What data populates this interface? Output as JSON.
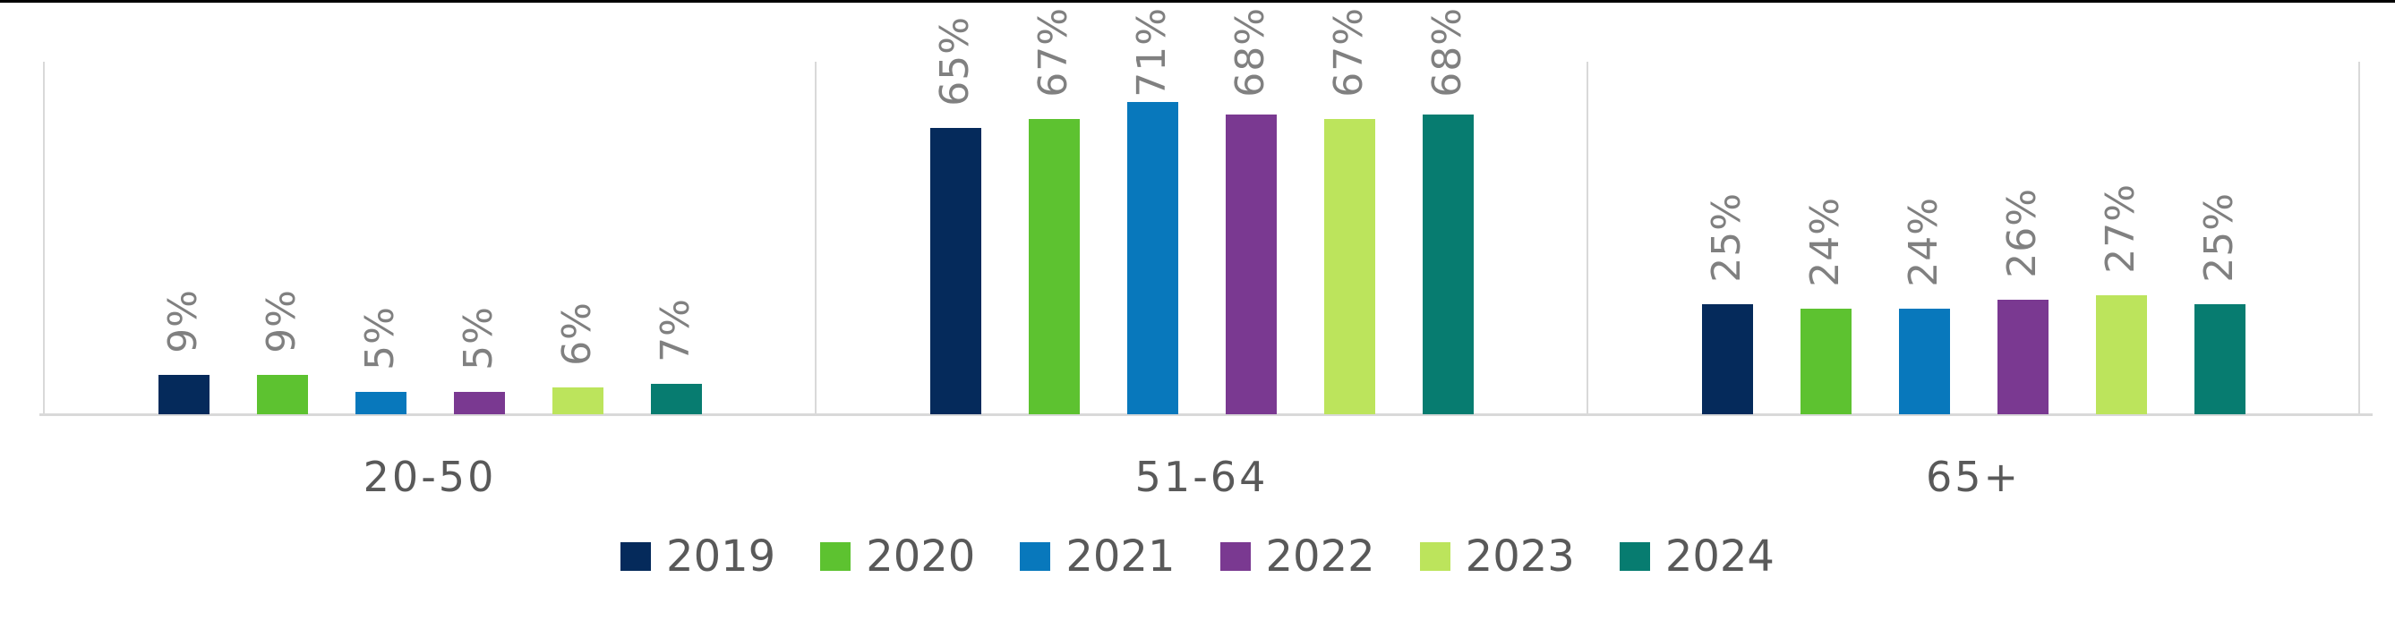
{
  "chart_data": {
    "type": "bar",
    "title": "",
    "categories": [
      "20-50",
      "51-64",
      "65+"
    ],
    "series": [
      {
        "name": "2019",
        "color": "#052A5B",
        "values": [
          9,
          65,
          25
        ]
      },
      {
        "name": "2020",
        "color": "#5DC230",
        "values": [
          9,
          67,
          24
        ]
      },
      {
        "name": "2021",
        "color": "#0878BC",
        "values": [
          5,
          71,
          24
        ]
      },
      {
        "name": "2022",
        "color": "#7A3991",
        "values": [
          5,
          68,
          26
        ]
      },
      {
        "name": "2023",
        "color": "#BCE45C",
        "values": [
          6,
          67,
          27
        ]
      },
      {
        "name": "2024",
        "color": "#077C70",
        "values": [
          7,
          68,
          25
        ]
      }
    ],
    "data_labels": [
      "9%",
      "9%",
      "5%",
      "5%",
      "6%",
      "7%",
      "65%",
      "67%",
      "71%",
      "68%",
      "67%",
      "68%",
      "25%",
      "24%",
      "24%",
      "26%",
      "27%",
      "25%"
    ],
    "value_suffix": "%",
    "label_rotation_deg": -90,
    "ylim": [
      0,
      80
    ],
    "grid": "vertical-category-separators",
    "legend_position": "bottom"
  },
  "colors": {
    "background": "#FFFFFF",
    "top_border": "#000000",
    "grid_line": "#D9D9D9",
    "axis_line": "#D9D9D9",
    "axis_text": "#595959",
    "legend_text": "#595959",
    "data_label_text": "#808080"
  }
}
